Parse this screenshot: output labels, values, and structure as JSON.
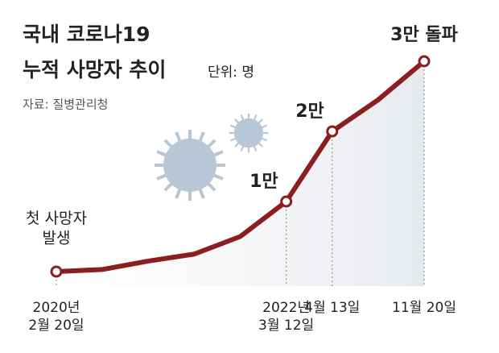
{
  "chart_data": {
    "type": "line",
    "title": [
      "국내 코로나19",
      "누적 사망자 추이"
    ],
    "unit": "단위: 명",
    "source": "자료: 질병관리청",
    "annotations": [
      "첫 사망자\n발생"
    ],
    "categories": [
      "2020년\n2월 20일",
      null,
      null,
      null,
      null,
      "2022년\n3월 12일",
      "4월 13일",
      null,
      "11월 20일"
    ],
    "values": [
      1,
      300,
      1500,
      2500,
      5000,
      10000,
      20000,
      24500,
      30000
    ],
    "value_labels": [
      null,
      null,
      null,
      null,
      null,
      "1만",
      "2만",
      null,
      "3만 돌파"
    ],
    "color": "#8b1e1e",
    "ylim": [
      0,
      30000
    ]
  }
}
